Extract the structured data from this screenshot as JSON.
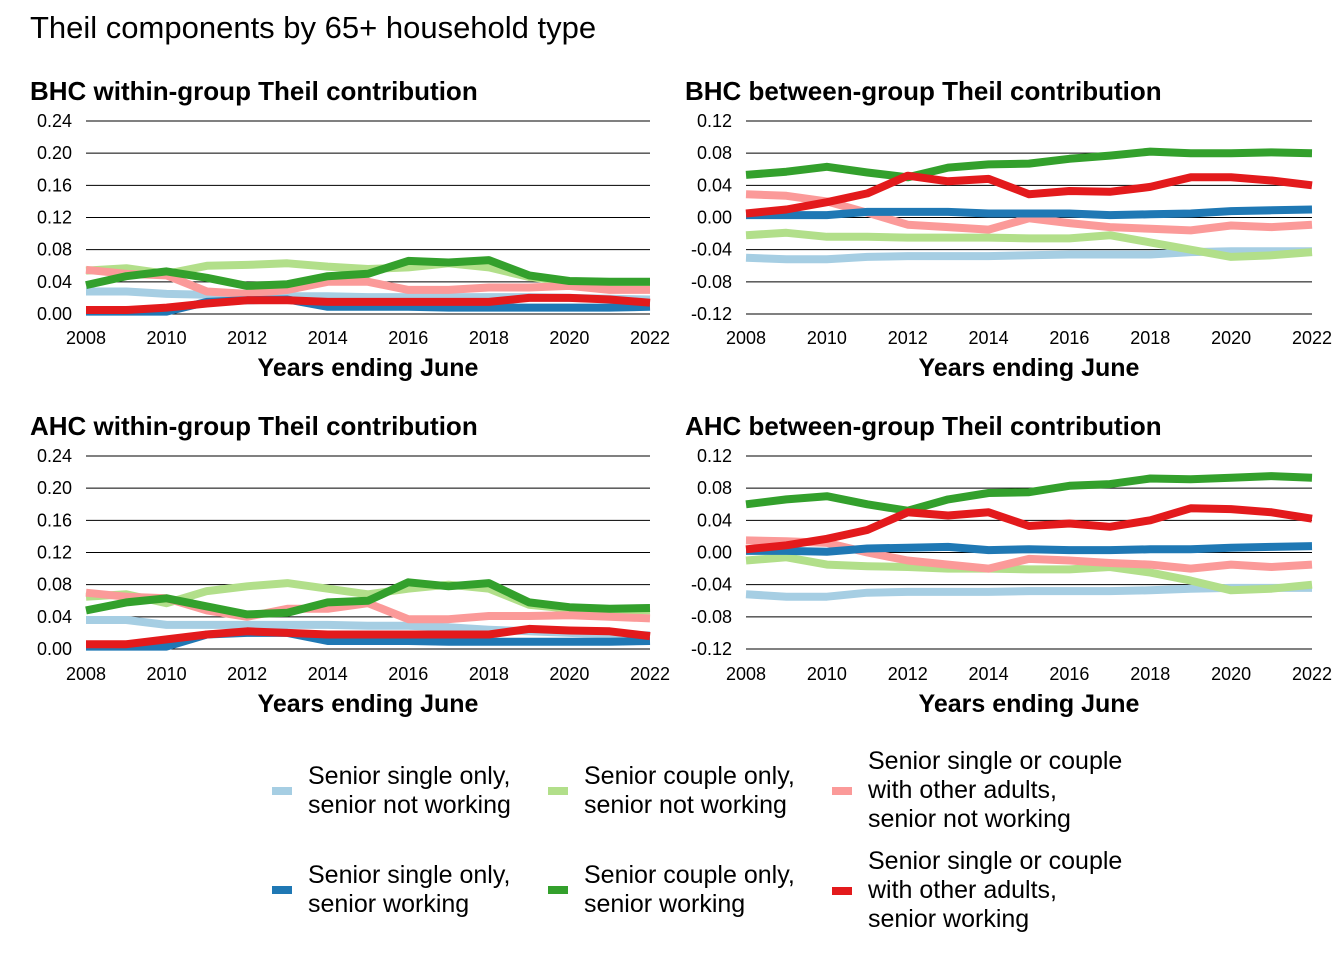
{
  "title": "Theil components by 65+ household type",
  "chart_data": [
    {
      "type": "line",
      "title": "BHC within-group Theil contribution",
      "xlabel": "Years ending June",
      "ylabel": "",
      "x": [
        2008,
        2009,
        2010,
        2011,
        2012,
        2013,
        2014,
        2015,
        2016,
        2017,
        2018,
        2019,
        2020,
        2021,
        2022
      ],
      "xticks": [
        "2008",
        "2010",
        "2012",
        "2014",
        "2016",
        "2018",
        "2020",
        "2022"
      ],
      "yticks": [
        "0.00",
        "0.04",
        "0.08",
        "0.12",
        "0.16",
        "0.20",
        "0.24"
      ],
      "ylim": [
        0,
        0.24
      ],
      "grid": true,
      "series": [
        {
          "name": "Senior single only, senior not working",
          "values": [
            0.028,
            0.028,
            0.025,
            0.024,
            0.023,
            0.022,
            0.022,
            0.021,
            0.021,
            0.021,
            0.021,
            0.021,
            0.02,
            0.019,
            0.018
          ]
        },
        {
          "name": "Senior couple only, senior not working",
          "values": [
            0.054,
            0.057,
            0.05,
            0.06,
            0.061,
            0.063,
            0.059,
            0.056,
            0.058,
            0.063,
            0.058,
            0.046,
            0.04,
            0.039,
            0.039
          ]
        },
        {
          "name": "Senior single or couple with other adults, senior not working",
          "values": [
            0.055,
            0.05,
            0.048,
            0.028,
            0.025,
            0.03,
            0.04,
            0.04,
            0.03,
            0.03,
            0.033,
            0.033,
            0.035,
            0.03,
            0.03
          ]
        },
        {
          "name": "Senior single only, senior working",
          "values": [
            0.003,
            0.003,
            0.003,
            0.015,
            0.017,
            0.018,
            0.009,
            0.009,
            0.009,
            0.008,
            0.008,
            0.008,
            0.008,
            0.008,
            0.009
          ]
        },
        {
          "name": "Senior couple only, senior working",
          "values": [
            0.036,
            0.047,
            0.053,
            0.045,
            0.035,
            0.037,
            0.047,
            0.05,
            0.066,
            0.064,
            0.067,
            0.048,
            0.041,
            0.04,
            0.04
          ]
        },
        {
          "name": "Senior single or couple with other adults, senior working",
          "values": [
            0.005,
            0.005,
            0.008,
            0.013,
            0.017,
            0.017,
            0.015,
            0.015,
            0.015,
            0.015,
            0.015,
            0.02,
            0.02,
            0.018,
            0.014
          ]
        }
      ]
    },
    {
      "type": "line",
      "title": "BHC between-group Theil contribution",
      "xlabel": "Years ending June",
      "ylabel": "",
      "x": [
        2008,
        2009,
        2010,
        2011,
        2012,
        2013,
        2014,
        2015,
        2016,
        2017,
        2018,
        2019,
        2020,
        2021,
        2022
      ],
      "xticks": [
        "2008",
        "2010",
        "2012",
        "2014",
        "2016",
        "2018",
        "2020",
        "2022"
      ],
      "yticks": [
        "-0.12",
        "-0.08",
        "-0.04",
        "0.00",
        "0.04",
        "0.08",
        "0.12"
      ],
      "ylim": [
        -0.12,
        0.12
      ],
      "grid": true,
      "series": [
        {
          "name": "Senior single only, senior not working",
          "values": [
            -0.05,
            -0.052,
            -0.052,
            -0.049,
            -0.048,
            -0.048,
            -0.048,
            -0.047,
            -0.046,
            -0.046,
            -0.046,
            -0.043,
            -0.042,
            -0.042,
            -0.042
          ]
        },
        {
          "name": "Senior couple only, senior not working",
          "values": [
            -0.022,
            -0.019,
            -0.024,
            -0.024,
            -0.025,
            -0.025,
            -0.025,
            -0.026,
            -0.026,
            -0.022,
            -0.031,
            -0.04,
            -0.049,
            -0.047,
            -0.043
          ]
        },
        {
          "name": "Senior single or couple with other adults, senior not working",
          "values": [
            0.029,
            0.027,
            0.02,
            0.006,
            -0.009,
            -0.012,
            -0.015,
            -0.001,
            -0.007,
            -0.012,
            -0.014,
            -0.016,
            -0.01,
            -0.012,
            -0.009
          ]
        },
        {
          "name": "Senior single only, senior working",
          "values": [
            0.003,
            0.003,
            0.003,
            0.007,
            0.007,
            0.007,
            0.005,
            0.005,
            0.005,
            0.003,
            0.004,
            0.005,
            0.008,
            0.009,
            0.01
          ]
        },
        {
          "name": "Senior couple only, senior working",
          "values": [
            0.053,
            0.057,
            0.063,
            0.056,
            0.05,
            0.062,
            0.066,
            0.067,
            0.073,
            0.077,
            0.082,
            0.08,
            0.08,
            0.081,
            0.08
          ]
        },
        {
          "name": "Senior single or couple with other adults, senior working",
          "values": [
            0.005,
            0.01,
            0.019,
            0.03,
            0.052,
            0.045,
            0.048,
            0.029,
            0.033,
            0.032,
            0.038,
            0.05,
            0.05,
            0.046,
            0.04
          ]
        }
      ]
    },
    {
      "type": "line",
      "title": "AHC within-group Theil contribution",
      "xlabel": "Years ending June",
      "ylabel": "",
      "x": [
        2008,
        2009,
        2010,
        2011,
        2012,
        2013,
        2014,
        2015,
        2016,
        2017,
        2018,
        2019,
        2020,
        2021,
        2022
      ],
      "xticks": [
        "2008",
        "2010",
        "2012",
        "2014",
        "2016",
        "2018",
        "2020",
        "2022"
      ],
      "yticks": [
        "0.00",
        "0.04",
        "0.08",
        "0.12",
        "0.16",
        "0.20",
        "0.24"
      ],
      "ylim": [
        0,
        0.24
      ],
      "grid": true,
      "series": [
        {
          "name": "Senior single only, senior not working",
          "values": [
            0.036,
            0.036,
            0.03,
            0.03,
            0.03,
            0.03,
            0.03,
            0.029,
            0.029,
            0.027,
            0.024,
            0.022,
            0.02,
            0.018,
            0.017
          ]
        },
        {
          "name": "Senior couple only, senior not working",
          "values": [
            0.065,
            0.068,
            0.057,
            0.072,
            0.078,
            0.082,
            0.075,
            0.068,
            0.075,
            0.08,
            0.075,
            0.055,
            0.05,
            0.048,
            0.048
          ]
        },
        {
          "name": "Senior single or couple with other adults, senior not working",
          "values": [
            0.07,
            0.065,
            0.063,
            0.048,
            0.04,
            0.05,
            0.05,
            0.057,
            0.037,
            0.037,
            0.041,
            0.041,
            0.042,
            0.04,
            0.038
          ]
        },
        {
          "name": "Senior single only, senior working",
          "values": [
            0.003,
            0.003,
            0.003,
            0.018,
            0.02,
            0.02,
            0.01,
            0.01,
            0.01,
            0.009,
            0.009,
            0.009,
            0.009,
            0.009,
            0.01
          ]
        },
        {
          "name": "Senior couple only, senior working",
          "values": [
            0.048,
            0.058,
            0.063,
            0.053,
            0.043,
            0.045,
            0.058,
            0.06,
            0.083,
            0.078,
            0.082,
            0.058,
            0.052,
            0.05,
            0.051
          ]
        },
        {
          "name": "Senior single or couple with other adults, senior working",
          "values": [
            0.006,
            0.006,
            0.012,
            0.018,
            0.022,
            0.02,
            0.018,
            0.018,
            0.018,
            0.018,
            0.018,
            0.025,
            0.023,
            0.022,
            0.016
          ]
        }
      ]
    },
    {
      "type": "line",
      "title": "AHC between-group Theil contribution",
      "xlabel": "Years ending June",
      "ylabel": "",
      "x": [
        2008,
        2009,
        2010,
        2011,
        2012,
        2013,
        2014,
        2015,
        2016,
        2017,
        2018,
        2019,
        2020,
        2021,
        2022
      ],
      "xticks": [
        "2008",
        "2010",
        "2012",
        "2014",
        "2016",
        "2018",
        "2020",
        "2022"
      ],
      "yticks": [
        "-0.12",
        "-0.08",
        "-0.04",
        "0.00",
        "0.04",
        "0.08",
        "0.12"
      ],
      "ylim": [
        -0.12,
        0.12
      ],
      "grid": true,
      "series": [
        {
          "name": "Senior single only, senior not working",
          "values": [
            -0.052,
            -0.055,
            -0.055,
            -0.05,
            -0.049,
            -0.049,
            -0.049,
            -0.048,
            -0.048,
            -0.048,
            -0.047,
            -0.045,
            -0.044,
            -0.044,
            -0.044
          ]
        },
        {
          "name": "Senior couple only, senior not working",
          "values": [
            -0.01,
            -0.006,
            -0.015,
            -0.017,
            -0.018,
            -0.02,
            -0.02,
            -0.021,
            -0.021,
            -0.018,
            -0.025,
            -0.035,
            -0.047,
            -0.045,
            -0.04
          ]
        },
        {
          "name": "Senior single or couple with other adults, senior not working",
          "values": [
            0.015,
            0.014,
            0.012,
            0.0,
            -0.01,
            -0.015,
            -0.02,
            -0.008,
            -0.01,
            -0.013,
            -0.015,
            -0.02,
            -0.015,
            -0.018,
            -0.015
          ]
        },
        {
          "name": "Senior single only, senior working",
          "values": [
            0.002,
            0.002,
            0.001,
            0.005,
            0.006,
            0.007,
            0.003,
            0.004,
            0.003,
            0.003,
            0.004,
            0.004,
            0.006,
            0.007,
            0.008
          ]
        },
        {
          "name": "Senior couple only, senior working",
          "values": [
            0.06,
            0.066,
            0.07,
            0.06,
            0.052,
            0.066,
            0.074,
            0.075,
            0.083,
            0.085,
            0.092,
            0.091,
            0.093,
            0.095,
            0.093
          ]
        },
        {
          "name": "Senior single or couple with other adults, senior working",
          "values": [
            0.004,
            0.009,
            0.017,
            0.028,
            0.05,
            0.046,
            0.05,
            0.033,
            0.036,
            0.032,
            0.04,
            0.055,
            0.054,
            0.05,
            0.042
          ]
        }
      ]
    }
  ],
  "legend": {
    "placement": "bottom",
    "items": [
      {
        "label": "Senior single only,\nsenior not working",
        "color": "#a6cee3"
      },
      {
        "label": "Senior couple only,\nsenior not working",
        "color": "#b2df8a"
      },
      {
        "label": "Senior single or couple\nwith other adults,\nsenior not working",
        "color": "#fb9a99"
      },
      {
        "label": "Senior single only,\nsenior working",
        "color": "#1f78b4"
      },
      {
        "label": "Senior couple only,\nsenior working",
        "color": "#33a02c"
      },
      {
        "label": "Senior single or couple\nwith other adults,\nsenior working",
        "color": "#e31a1c"
      }
    ]
  },
  "colors": {
    "grid": "#000000",
    "series": [
      "#a6cee3",
      "#b2df8a",
      "#fb9a99",
      "#1f78b4",
      "#33a02c",
      "#e31a1c"
    ]
  }
}
